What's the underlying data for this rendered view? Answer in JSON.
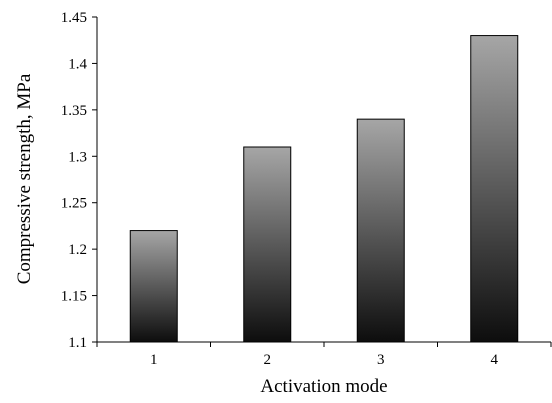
{
  "chart_data": {
    "type": "bar",
    "categories": [
      "1",
      "2",
      "3",
      "4"
    ],
    "values": [
      1.22,
      1.31,
      1.34,
      1.43
    ],
    "xlabel": "Activation mode",
    "ylabel": "Compressive strength, MPa",
    "ylim": [
      1.1,
      1.45
    ],
    "yticks": [
      "1.1",
      "1.15",
      "1.2",
      "1.25",
      "1.3",
      "1.35",
      "1.4",
      "1.45"
    ],
    "grid": false,
    "legend": "none",
    "colors": {
      "bar_top": "#a6a6a6",
      "bar_bottom": "#0d0d0d",
      "axis": "#000000"
    }
  }
}
